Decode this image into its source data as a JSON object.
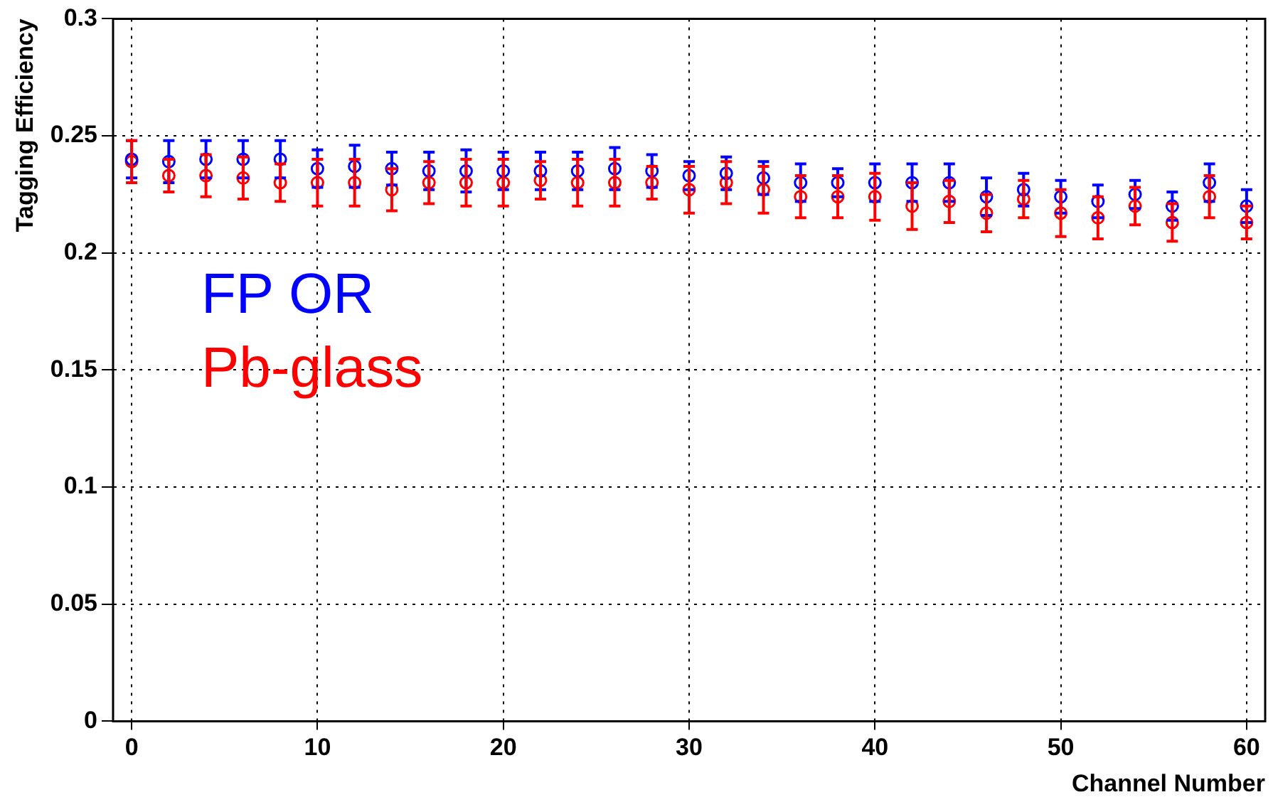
{
  "chart_data": {
    "type": "scatter",
    "xlabel": "Channel Number",
    "ylabel": "Tagging Efficiency",
    "x": [
      0,
      2,
      4,
      6,
      8,
      10,
      12,
      14,
      16,
      18,
      20,
      22,
      24,
      26,
      28,
      30,
      32,
      34,
      36,
      38,
      40,
      42,
      44,
      46,
      48,
      50,
      52,
      54,
      56,
      58,
      60
    ],
    "series": [
      {
        "name": "FP OR",
        "color": "#0000ff",
        "values": [
          0.24,
          0.239,
          0.24,
          0.24,
          0.24,
          0.236,
          0.237,
          0.236,
          0.235,
          0.235,
          0.235,
          0.235,
          0.235,
          0.236,
          0.235,
          0.233,
          0.234,
          0.232,
          0.23,
          0.23,
          0.23,
          0.23,
          0.23,
          0.224,
          0.227,
          0.224,
          0.222,
          0.225,
          0.22,
          0.23,
          0.22
        ],
        "errors": [
          0.008,
          0.009,
          0.008,
          0.008,
          0.008,
          0.008,
          0.009,
          0.007,
          0.008,
          0.009,
          0.008,
          0.008,
          0.008,
          0.009,
          0.007,
          0.006,
          0.007,
          0.007,
          0.008,
          0.006,
          0.008,
          0.008,
          0.008,
          0.008,
          0.007,
          0.007,
          0.007,
          0.006,
          0.006,
          0.008,
          0.007
        ]
      },
      {
        "name": "Pb-glass",
        "color": "#ff0000",
        "values": [
          0.239,
          0.233,
          0.233,
          0.232,
          0.23,
          0.23,
          0.23,
          0.227,
          0.23,
          0.23,
          0.23,
          0.231,
          0.23,
          0.23,
          0.23,
          0.227,
          0.23,
          0.227,
          0.224,
          0.224,
          0.224,
          0.22,
          0.222,
          0.217,
          0.223,
          0.217,
          0.215,
          0.22,
          0.213,
          0.224,
          0.213
        ],
        "errors": [
          0.009,
          0.007,
          0.009,
          0.009,
          0.008,
          0.01,
          0.01,
          0.009,
          0.009,
          0.01,
          0.01,
          0.008,
          0.01,
          0.01,
          0.007,
          0.01,
          0.009,
          0.01,
          0.009,
          0.009,
          0.01,
          0.01,
          0.009,
          0.008,
          0.008,
          0.01,
          0.009,
          0.008,
          0.008,
          0.009,
          0.007
        ]
      }
    ],
    "xlim": [
      -1,
      61
    ],
    "xticks": [
      0,
      10,
      20,
      30,
      40,
      50,
      60
    ],
    "ylim": [
      0,
      0.3
    ],
    "yticks": [
      0,
      0.05,
      0.1,
      0.15,
      0.2,
      0.25,
      0.3
    ],
    "grid": true,
    "marker": "circle",
    "legend": "center left"
  }
}
